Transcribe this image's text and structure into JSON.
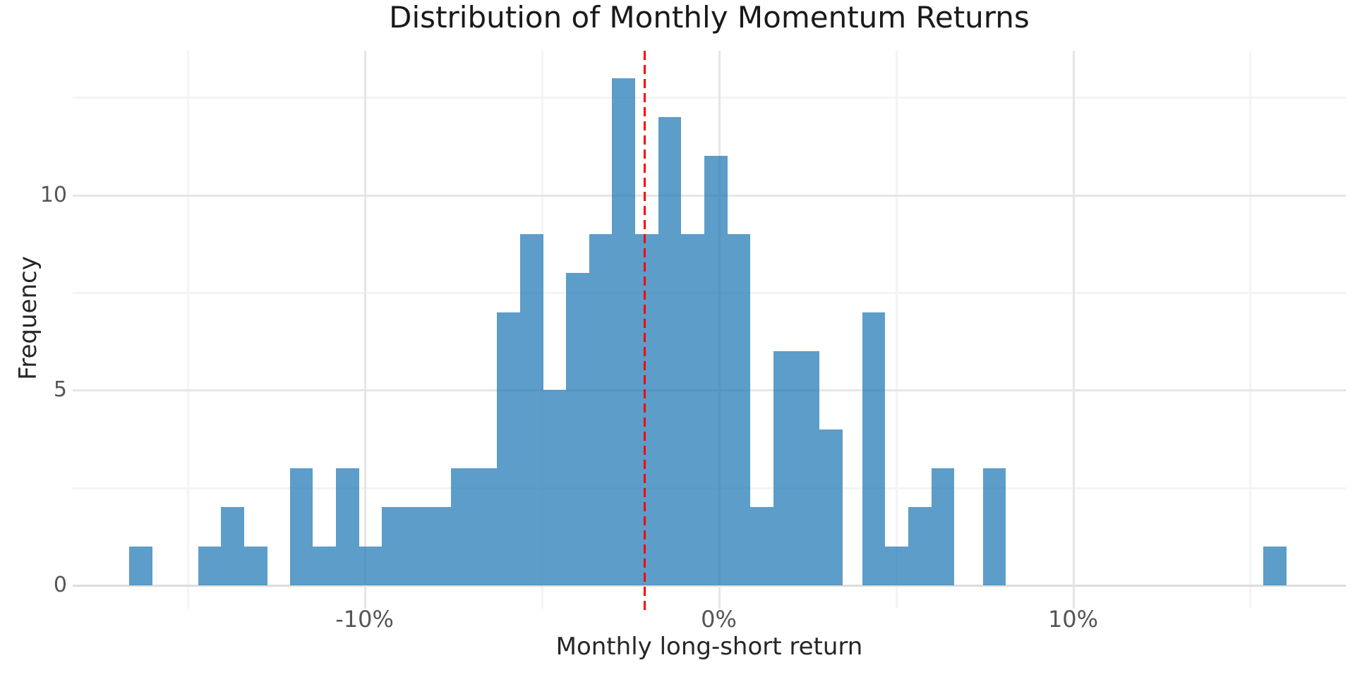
{
  "chart_data": {
    "type": "bar",
    "subtype": "histogram",
    "title": "Distribution of Monthly Momentum Returns",
    "xlabel": "Monthly long-short return",
    "ylabel": "Frequency",
    "xlim": [
      -18.24,
      17.7
    ],
    "ylim": [
      0,
      13.7
    ],
    "grid": true,
    "legend": "none",
    "x_ticks": [
      {
        "value": -10,
        "label": "-10%"
      },
      {
        "value": 0,
        "label": "0%"
      },
      {
        "value": 10,
        "label": "10%"
      }
    ],
    "x_minor_ticks": [
      -15,
      -5,
      5,
      15
    ],
    "y_ticks": [
      {
        "value": 0,
        "label": "0"
      },
      {
        "value": 5,
        "label": "5"
      },
      {
        "value": 10,
        "label": "10"
      }
    ],
    "y_minor_ticks": [
      2.5,
      7.5,
      12.5
    ],
    "bin_width_pct": 0.65,
    "bar_groups": [
      {
        "start_pct": -16.64,
        "counts": [
          1
        ]
      },
      {
        "start_pct": -14.7,
        "counts": [
          1,
          2,
          1
        ]
      },
      {
        "start_pct": -12.11,
        "counts": [
          3,
          1,
          3,
          1,
          2,
          2,
          2,
          3,
          3,
          7,
          9,
          5,
          8,
          9,
          13,
          9,
          12,
          9,
          11,
          9,
          2,
          6,
          6,
          4
        ]
      },
      {
        "start_pct": 4.05,
        "counts": [
          7,
          1,
          2,
          3
        ]
      },
      {
        "start_pct": 7.45,
        "counts": [
          3
        ]
      },
      {
        "start_pct": 15.37,
        "counts": [
          1
        ]
      }
    ],
    "vline": {
      "x_pct": -2.1,
      "style": "dashed",
      "color": "#FF0000"
    },
    "colors": {
      "bar_fill": "rgba(31,119,180,0.72)",
      "vline": "#FF0000",
      "grid_major": "#E6E6E6",
      "grid_minor": "#F4F4F4",
      "zero_line": "#DCDCDC",
      "tick_label": "#555555",
      "axis_label": "#262626",
      "title": "#1A1A1A",
      "background": "#FFFFFF"
    }
  }
}
